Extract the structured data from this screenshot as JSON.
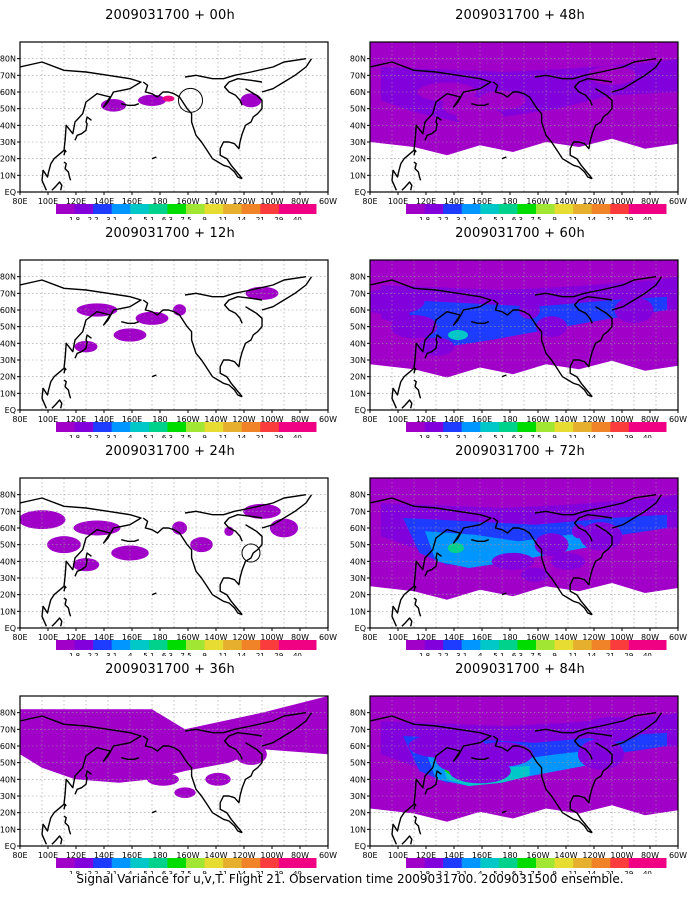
{
  "caption": "Signal Variance for u,v,T. Flight 21. Observation time 2009031700. 2009031500 ensemble.",
  "colorbar": {
    "labels": [
      "1.8",
      "2.2",
      "3.1",
      "4",
      "5.1",
      "6.3",
      "7.5",
      "9",
      "11",
      "14",
      "21",
      "29",
      "40"
    ],
    "colors": [
      "#a000c8",
      "#8200dc",
      "#1e3cff",
      "#0096ff",
      "#00c8c8",
      "#00d28c",
      "#00dc00",
      "#a0e632",
      "#e6dc32",
      "#e6af2d",
      "#f08228",
      "#fa3c3c",
      "#f00082"
    ]
  },
  "x_ticks": [
    "80E",
    "100E",
    "120E",
    "140E",
    "160E",
    "180",
    "160W",
    "140W",
    "120W",
    "100W",
    "80W",
    "60W"
  ],
  "y_ticks": [
    "EQ",
    "10N",
    "20N",
    "30N",
    "40N",
    "50N",
    "60N",
    "70N",
    "80N"
  ],
  "panels": [
    {
      "title": "2009031700 + 00h",
      "level": 0
    },
    {
      "title": "2009031700 + 12h",
      "level": 1
    },
    {
      "title": "2009031700 + 24h",
      "level": 2
    },
    {
      "title": "2009031700 + 36h",
      "level": 3
    },
    {
      "title": "2009031700 + 48h",
      "level": 4
    },
    {
      "title": "2009031700 + 60h",
      "level": 5
    },
    {
      "title": "2009031700 + 72h",
      "level": 6
    },
    {
      "title": "2009031700 + 84h",
      "level": 7
    }
  ]
}
